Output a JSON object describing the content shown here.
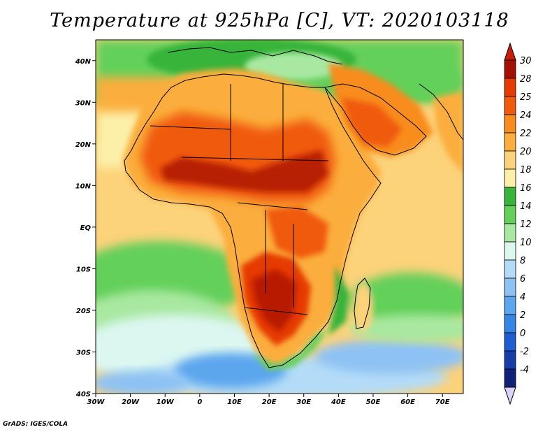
{
  "title": "Temperature at 925hPa [C], VT: 2020103118",
  "footer": "GrADS: IGES/COLA",
  "map": {
    "region": "Africa and surrounding oceans",
    "lon_range": [
      -30,
      76
    ],
    "lat_range": [
      -40,
      45
    ],
    "lat_ticks": [
      "40N",
      "30N",
      "20N",
      "10N",
      "EQ",
      "10S",
      "20S",
      "30S",
      "40S"
    ],
    "lat_tick_values": [
      40,
      30,
      20,
      10,
      0,
      -10,
      -20,
      -30,
      -40
    ],
    "lon_ticks": [
      "30W",
      "20W",
      "10W",
      "0",
      "10E",
      "20E",
      "30E",
      "40E",
      "50E",
      "60E",
      "70E"
    ],
    "lon_tick_values": [
      -30,
      -20,
      -10,
      0,
      10,
      20,
      30,
      40,
      50,
      60,
      70
    ]
  },
  "colorbar": {
    "labels": [
      "30",
      "28",
      "25",
      "24",
      "22",
      "20",
      "18",
      "16",
      "14",
      "12",
      "10",
      "8",
      "6",
      "4",
      "2",
      "0",
      "-2",
      "-4"
    ],
    "colors": [
      "#a50f00",
      "#e63a00",
      "#f05a0a",
      "#f88c1c",
      "#fbae3c",
      "#fcd27a",
      "#fcf0a8",
      "#37b43a",
      "#64d05a",
      "#a8e8a0",
      "#dcf7f0",
      "#b4dcf8",
      "#8ec2f4",
      "#5ca6ee",
      "#3585e6",
      "#1e5dd2",
      "#173ea8",
      "#102278"
    ],
    "top_arrow_color": "#c81e0a",
    "bottom_arrow_color": "#dcd2fa"
  }
}
